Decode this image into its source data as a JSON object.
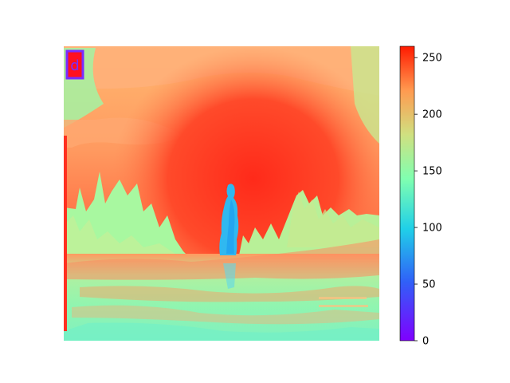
{
  "image": {
    "description_tag": "heatmap-styled-photo",
    "colormap": "rainbow",
    "inset_icon": "letter-d-icon",
    "inset_text": "d"
  },
  "colorbar": {
    "min": 0,
    "max": 260,
    "ticks": [
      "0",
      "50",
      "100",
      "150",
      "200",
      "250"
    ],
    "tick_values": [
      0,
      50,
      100,
      150,
      200,
      250
    ]
  }
}
